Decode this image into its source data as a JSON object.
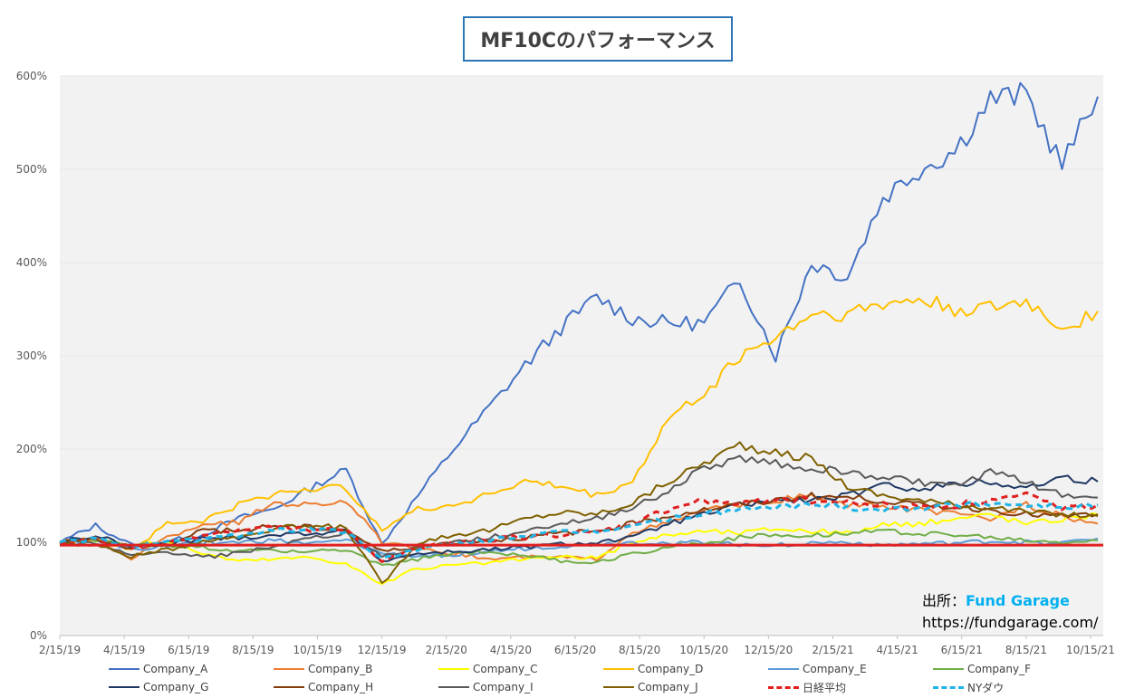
{
  "chart_data": {
    "type": "line",
    "title": "MF10Cのパフォーマンス",
    "y_ticks": [
      "0%",
      "100%",
      "200%",
      "300%",
      "400%",
      "500%",
      "600%"
    ],
    "ylim": [
      0,
      600
    ],
    "x_ticks": [
      "2/15/19",
      "4/15/19",
      "6/15/19",
      "8/15/19",
      "10/15/19",
      "12/15/19",
      "2/15/20",
      "4/15/20",
      "6/15/20",
      "8/15/20",
      "10/15/20",
      "12/15/20",
      "2/15/21",
      "4/15/21",
      "6/15/21",
      "8/15/21",
      "10/15/21"
    ],
    "baseline": {
      "name": "",
      "value": 97,
      "color": "#e02020"
    },
    "series": [
      {
        "name": "Company_A",
        "color": "#4472c4",
        "dash": false,
        "values": [
          100,
          118,
          97,
          101,
          108,
          126,
          136,
          158,
          178,
          98,
          150,
          200,
          245,
          290,
          330,
          363,
          340,
          335,
          335,
          382,
          300,
          400,
          385,
          470,
          500,
          520,
          575,
          580,
          505,
          578
        ]
      },
      {
        "name": "Company_B",
        "color": "#ed7d31",
        "dash": false,
        "values": [
          100,
          103,
          83,
          105,
          120,
          121,
          143,
          140,
          145,
          100,
          92,
          88,
          82,
          84,
          84,
          82,
          112,
          120,
          135,
          140,
          145,
          150,
          140,
          138,
          135,
          130,
          125,
          140,
          128,
          120
        ]
      },
      {
        "name": "Company_C",
        "color": "#ffff00",
        "dash": false,
        "values": [
          100,
          103,
          96,
          101,
          88,
          80,
          82,
          84,
          77,
          55,
          72,
          75,
          78,
          82,
          84,
          83,
          100,
          108,
          112,
          110,
          115,
          112,
          110,
          118,
          120,
          125,
          130,
          120,
          125,
          130
        ]
      },
      {
        "name": "Company_D",
        "color": "#ffc000",
        "dash": false,
        "values": [
          100,
          104,
          92,
          120,
          123,
          140,
          152,
          158,
          158,
          115,
          135,
          140,
          152,
          165,
          160,
          150,
          165,
          232,
          260,
          300,
          320,
          345,
          345,
          355,
          360,
          350,
          350,
          358,
          330,
          348
        ]
      },
      {
        "name": "Company_E",
        "color": "#5b9bd5",
        "dash": false,
        "values": [
          100,
          104,
          92,
          96,
          100,
          100,
          102,
          98,
          102,
          88,
          85,
          87,
          90,
          93,
          96,
          98,
          100,
          99,
          100,
          98,
          97,
          99,
          100,
          97,
          98,
          99,
          101,
          100,
          99,
          104
        ]
      },
      {
        "name": "Company_F",
        "color": "#70ad47",
        "dash": false,
        "values": [
          100,
          102,
          97,
          96,
          94,
          90,
          92,
          90,
          92,
          74,
          82,
          88,
          90,
          86,
          80,
          78,
          88,
          95,
          100,
          105,
          108,
          108,
          110,
          112,
          110,
          108,
          105,
          102,
          100,
          102
        ]
      },
      {
        "name": "Company_G",
        "color": "#203864",
        "dash": false,
        "values": [
          100,
          107,
          95,
          98,
          104,
          105,
          108,
          110,
          112,
          80,
          88,
          90,
          92,
          95,
          98,
          100,
          105,
          120,
          130,
          140,
          145,
          145,
          150,
          160,
          158,
          162,
          165,
          158,
          170,
          165
        ]
      },
      {
        "name": "Company_H",
        "color": "#843c0c",
        "dash": false,
        "values": [
          100,
          104,
          93,
          100,
          113,
          112,
          118,
          116,
          113,
          90,
          95,
          100,
          102,
          105,
          110,
          112,
          120,
          128,
          135,
          140,
          145,
          150,
          148,
          145,
          140,
          138,
          135,
          130,
          128,
          130
        ]
      },
      {
        "name": "Company_I",
        "color": "#595959",
        "dash": false,
        "values": [
          100,
          98,
          85,
          90,
          84,
          88,
          96,
          104,
          110,
          85,
          95,
          100,
          105,
          112,
          120,
          125,
          138,
          155,
          180,
          190,
          185,
          180,
          175,
          170,
          165,
          160,
          175,
          165,
          150,
          148
        ]
      },
      {
        "name": "Company_J",
        "color": "#7f6000",
        "dash": false,
        "values": [
          100,
          97,
          85,
          92,
          102,
          106,
          115,
          117,
          116,
          55,
          100,
          108,
          113,
          125,
          132,
          130,
          142,
          165,
          185,
          205,
          195,
          190,
          160,
          150,
          145,
          140,
          138,
          132,
          130,
          128
        ]
      },
      {
        "name": "日経平均",
        "color": "#e02020",
        "dash": true,
        "values": [
          100,
          104,
          94,
          98,
          108,
          113,
          116,
          114,
          112,
          80,
          93,
          100,
          103,
          106,
          108,
          110,
          120,
          135,
          145,
          140,
          148,
          145,
          142,
          140,
          138,
          140,
          145,
          150,
          138,
          140
        ]
      },
      {
        "name": "NYダウ",
        "color": "#1eb4e6",
        "dash": true,
        "values": [
          100,
          103,
          97,
          99,
          104,
          108,
          113,
          114,
          111,
          82,
          93,
          97,
          103,
          107,
          110,
          112,
          118,
          125,
          130,
          135,
          138,
          140,
          138,
          135,
          138,
          140,
          142,
          140,
          138,
          140
        ]
      }
    ]
  },
  "credit": {
    "label": "出所：",
    "brand": "Fund Garage",
    "url": "https://fundgarage.com/"
  }
}
